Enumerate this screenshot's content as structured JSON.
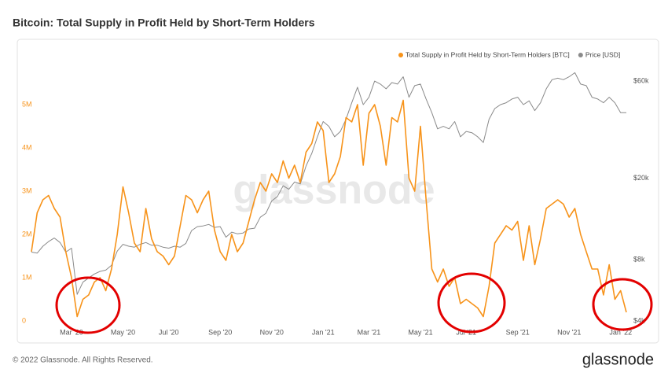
{
  "chart_data": {
    "type": "line",
    "title": "Bitcoin: Total Supply in Profit Held by Short-Term Holders",
    "watermark": "glassnode",
    "footer": "© 2022 Glassnode. All Rights Reserved.",
    "logo": "glassnode",
    "categories": [
      null,
      null,
      null,
      null,
      null,
      null,
      null,
      "Mar '20",
      null,
      null,
      null,
      null,
      null,
      null,
      null,
      null,
      "May '20",
      null,
      null,
      null,
      null,
      null,
      null,
      null,
      "Jul '20",
      null,
      null,
      null,
      null,
      null,
      null,
      null,
      null,
      "Sep '20",
      null,
      null,
      null,
      null,
      null,
      null,
      null,
      null,
      "Nov '20",
      null,
      null,
      null,
      null,
      null,
      null,
      null,
      null,
      "Jan '21",
      null,
      null,
      null,
      null,
      null,
      null,
      null,
      "Mar '21",
      null,
      null,
      null,
      null,
      null,
      null,
      null,
      null,
      "May '21",
      null,
      null,
      null,
      null,
      null,
      null,
      null,
      "Jul '21",
      null,
      null,
      null,
      null,
      null,
      null,
      null,
      null,
      "Sep '21",
      null,
      null,
      null,
      null,
      null,
      null,
      null,
      null,
      "Nov '21",
      null,
      null,
      null,
      null,
      null,
      null,
      null,
      null,
      "Jan '22",
      null
    ],
    "series": [
      {
        "name": "Total Supply in Profit Held by Short-Term Holders [BTC]",
        "color": "#f7931a",
        "axis": "y",
        "values": [
          1600000,
          2500000,
          2800000,
          2900000,
          2600000,
          2400000,
          1600000,
          1000000,
          100000,
          500000,
          600000,
          900000,
          1000000,
          700000,
          1200000,
          2000000,
          3100000,
          2500000,
          1800000,
          1600000,
          2600000,
          1900000,
          1600000,
          1500000,
          1300000,
          1500000,
          2200000,
          2900000,
          2800000,
          2500000,
          2800000,
          3000000,
          2100000,
          1600000,
          1400000,
          2000000,
          1600000,
          1800000,
          2300000,
          2800000,
          3200000,
          3000000,
          3400000,
          3200000,
          3700000,
          3300000,
          3600000,
          3200000,
          3900000,
          4100000,
          4600000,
          4400000,
          3200000,
          3400000,
          3800000,
          4700000,
          4600000,
          5000000,
          3600000,
          4800000,
          5000000,
          4500000,
          3600000,
          4700000,
          4600000,
          5100000,
          3300000,
          3000000,
          4500000,
          2800000,
          1200000,
          900000,
          1200000,
          800000,
          1000000,
          400000,
          500000,
          400000,
          300000,
          100000,
          800000,
          1800000,
          2000000,
          2200000,
          2100000,
          2300000,
          1400000,
          2200000,
          1300000,
          1900000,
          2600000,
          2700000,
          2800000,
          2700000,
          2400000,
          2600000,
          2000000,
          1600000,
          1200000,
          1200000,
          600000,
          1300000,
          500000,
          700000,
          200000
        ]
      },
      {
        "name": "Price [USD]",
        "color": "#8a8a8a",
        "axis": "y2",
        "values": [
          8700,
          8600,
          9300,
          9800,
          10200,
          9700,
          8700,
          9100,
          5400,
          6200,
          6500,
          6800,
          7000,
          7100,
          7500,
          8800,
          9500,
          9300,
          9200,
          9500,
          9700,
          9400,
          9400,
          9200,
          9100,
          9300,
          9200,
          9600,
          11100,
          11600,
          11700,
          11900,
          11500,
          11600,
          10300,
          10900,
          10700,
          10800,
          11300,
          11400,
          12900,
          13500,
          15500,
          16300,
          18400,
          17700,
          19200,
          18800,
          23000,
          26500,
          32000,
          38000,
          36000,
          32000,
          34000,
          39000,
          47000,
          56000,
          46000,
          50000,
          60000,
          58000,
          55000,
          59000,
          58000,
          63000,
          50000,
          57000,
          58000,
          49000,
          42000,
          35000,
          36000,
          35000,
          38000,
          32000,
          34000,
          33500,
          32000,
          30000,
          39000,
          44000,
          46000,
          47000,
          49000,
          50000,
          46000,
          48000,
          43000,
          47000,
          55000,
          61000,
          62000,
          61000,
          63000,
          66000,
          58000,
          57000,
          50000,
          49000,
          47000,
          50000,
          47000,
          42000,
          42000
        ]
      }
    ],
    "ylim": [
      0,
      6000000
    ],
    "yticks": [
      0,
      {
        "value": 1000000,
        "label": "1M"
      },
      {
        "value": 2000000,
        "label": "2M"
      },
      {
        "value": 3000000,
        "label": "3M"
      },
      {
        "value": 4000000,
        "label": "4M"
      },
      {
        "value": 5000000,
        "label": "5M"
      }
    ],
    "y2lim": [
      4000,
      75000
    ],
    "y2ticks": [
      {
        "value": 4000,
        "label": "$4k"
      },
      {
        "value": 8000,
        "label": "$8k"
      },
      {
        "value": 20000,
        "label": "$20k"
      },
      {
        "value": 60000,
        "label": "$60k"
      }
    ],
    "y2log": true,
    "grid": false,
    "legend": "top-right"
  }
}
